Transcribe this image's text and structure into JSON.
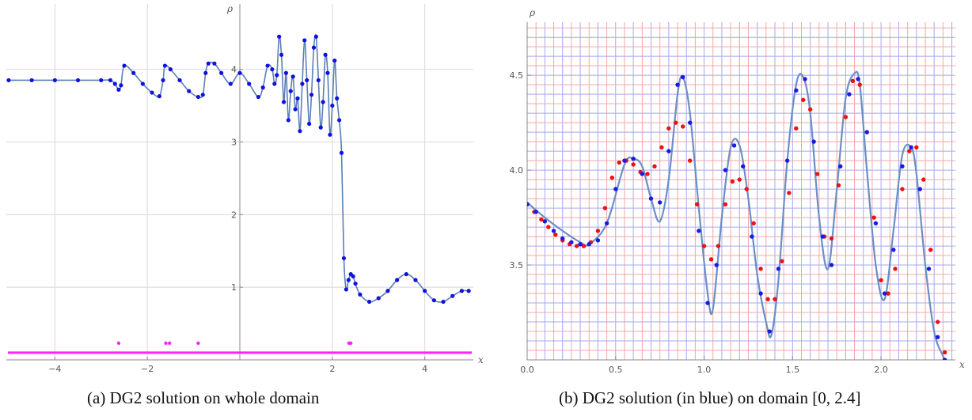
{
  "chart_data": [
    {
      "type": "scatter",
      "caption": "(a) DG2 solution on whole domain",
      "xlabel": "x",
      "ylabel": "ρ",
      "xlim": [
        -5.05,
        5.05
      ],
      "ylim": [
        0,
        4.9
      ],
      "xticks": [
        -4,
        -2,
        0,
        2,
        4
      ],
      "xtick_labels": [
        "−4",
        "−2",
        "",
        "2",
        "4"
      ],
      "yticks": [
        1,
        2,
        3,
        4
      ],
      "grid": true,
      "colors": {
        "points": "#1010e0",
        "line": "#5a7fb6",
        "indicator": "#ff22ff",
        "grid": "#d8d8d8"
      },
      "series": [
        {
          "kind": "blue-dots",
          "x": [
            -5.0,
            -4.5,
            -4.0,
            -3.5,
            -3.0,
            -2.8,
            -2.7,
            -2.62,
            -2.57,
            -2.5,
            -2.3,
            -2.1,
            -1.9,
            -1.74,
            -1.66,
            -1.62,
            -1.5,
            -1.3,
            -1.1,
            -0.9,
            -0.8,
            -0.74,
            -0.68,
            -0.55,
            -0.4,
            -0.2,
            0.0,
            0.2,
            0.4,
            0.5,
            0.6,
            0.7,
            0.75,
            0.8,
            0.85,
            0.9,
            0.95,
            1.0,
            1.05,
            1.1,
            1.15,
            1.2,
            1.25,
            1.3,
            1.35,
            1.4,
            1.45,
            1.5,
            1.55,
            1.6,
            1.65,
            1.7,
            1.75,
            1.8,
            1.85,
            1.9,
            1.95,
            2.0,
            2.05,
            2.1,
            2.15,
            2.2,
            2.25,
            2.3,
            2.35,
            2.4,
            2.45,
            2.5,
            2.6,
            2.8,
            3.0,
            3.2,
            3.4,
            3.6,
            3.8,
            4.0,
            4.2,
            4.4,
            4.6,
            4.8,
            4.95
          ],
          "y": [
            3.85,
            3.85,
            3.85,
            3.85,
            3.85,
            3.85,
            3.8,
            3.72,
            3.78,
            4.05,
            3.95,
            3.8,
            3.68,
            3.63,
            3.85,
            4.05,
            4.0,
            3.85,
            3.7,
            3.62,
            3.65,
            3.95,
            4.08,
            4.08,
            3.95,
            3.8,
            3.95,
            3.8,
            3.62,
            3.75,
            4.05,
            4.0,
            3.8,
            3.92,
            4.45,
            4.2,
            3.55,
            3.95,
            3.3,
            3.7,
            3.9,
            3.45,
            3.6,
            3.15,
            3.8,
            4.4,
            3.85,
            3.25,
            3.65,
            4.3,
            4.45,
            3.85,
            3.2,
            3.55,
            4.2,
            3.95,
            3.1,
            3.5,
            4.12,
            3.6,
            3.3,
            2.85,
            1.4,
            0.97,
            1.1,
            1.18,
            1.15,
            1.05,
            0.9,
            0.8,
            0.85,
            0.95,
            1.1,
            1.18,
            1.1,
            0.95,
            0.82,
            0.8,
            0.88,
            0.95,
            0.95
          ]
        },
        {
          "kind": "indicator",
          "x": [
            -2.62,
            -1.6,
            -1.52,
            -0.9,
            2.36,
            2.4
          ],
          "y": [
            0.23,
            0.23,
            0.23,
            0.23,
            0.23,
            0.23
          ],
          "baseline": 0.1
        }
      ]
    },
    {
      "type": "line",
      "caption": "(b) DG2 solution (in blue) on domain [0, 2.4]",
      "xlabel": "x",
      "ylabel": "ρ",
      "xlim": [
        0,
        2.42
      ],
      "ylim": [
        3.0,
        4.78
      ],
      "xticks": [
        0.0,
        0.5,
        1.0,
        1.5,
        2.0
      ],
      "xtick_labels": [
        "0.0",
        "0.5",
        "1.0",
        "1.5",
        "2.0"
      ],
      "yticks": [
        3.5,
        4.0,
        4.5
      ],
      "ytick_labels": [
        "3.5",
        "4.0",
        "4.5"
      ],
      "colors": {
        "line": "#6a8fc6",
        "blue_points": "#1a1ae6",
        "red_points": "#ee1111",
        "grid_blue": "#a8a8f0",
        "grid_red": "#f0a8a8"
      },
      "series": [
        {
          "name": "",
          "kind": "reference-line",
          "x": [
            0.0,
            0.1,
            0.2,
            0.3,
            0.35,
            0.45,
            0.55,
            0.6,
            0.65,
            0.7,
            0.75,
            0.8,
            0.85,
            0.88,
            0.92,
            0.97,
            1.02,
            1.05,
            1.1,
            1.15,
            1.2,
            1.25,
            1.3,
            1.35,
            1.38,
            1.42,
            1.47,
            1.52,
            1.56,
            1.6,
            1.65,
            1.7,
            1.75,
            1.8,
            1.85,
            1.88,
            1.92,
            1.97,
            2.02,
            2.07,
            2.12,
            2.17,
            2.2,
            2.25,
            2.3,
            2.35,
            2.37
          ],
          "y": [
            3.83,
            3.75,
            3.68,
            3.62,
            3.61,
            3.72,
            4.03,
            4.06,
            4.02,
            3.85,
            3.73,
            3.95,
            4.4,
            4.49,
            4.3,
            3.8,
            3.35,
            3.27,
            3.75,
            4.12,
            4.13,
            3.85,
            3.45,
            3.2,
            3.13,
            3.42,
            4.05,
            4.45,
            4.49,
            4.3,
            3.75,
            3.48,
            3.9,
            4.38,
            4.51,
            4.45,
            4.0,
            3.5,
            3.32,
            3.68,
            4.08,
            4.12,
            3.98,
            3.5,
            3.15,
            3.02,
            2.98
          ]
        },
        {
          "name": "",
          "kind": "blue-dots",
          "x": [
            0.0,
            0.05,
            0.1,
            0.15,
            0.2,
            0.25,
            0.3,
            0.35,
            0.4,
            0.45,
            0.5,
            0.55,
            0.6,
            0.65,
            0.7,
            0.75,
            0.8,
            0.85,
            0.88,
            0.92,
            0.97,
            1.02,
            1.07,
            1.12,
            1.17,
            1.22,
            1.27,
            1.32,
            1.37,
            1.42,
            1.47,
            1.52,
            1.57,
            1.62,
            1.67,
            1.72,
            1.77,
            1.82,
            1.87,
            1.92,
            1.97,
            2.02,
            2.07,
            2.12,
            2.17,
            2.22,
            2.27,
            2.32,
            2.36
          ],
          "y": [
            3.82,
            3.78,
            3.73,
            3.68,
            3.64,
            3.62,
            3.61,
            3.61,
            3.63,
            3.72,
            3.9,
            4.05,
            4.06,
            3.98,
            3.85,
            3.83,
            4.1,
            4.45,
            4.49,
            4.25,
            3.68,
            3.3,
            3.5,
            4.0,
            4.13,
            4.02,
            3.65,
            3.35,
            3.15,
            3.48,
            4.05,
            4.42,
            4.48,
            4.15,
            3.65,
            3.5,
            4.02,
            4.4,
            4.48,
            4.2,
            3.72,
            3.35,
            3.58,
            4.02,
            4.12,
            3.9,
            3.48,
            3.12,
            3.0
          ]
        },
        {
          "name": "",
          "kind": "red-dots",
          "x": [
            0.0,
            0.04,
            0.08,
            0.12,
            0.16,
            0.2,
            0.24,
            0.28,
            0.32,
            0.36,
            0.4,
            0.44,
            0.48,
            0.52,
            0.56,
            0.6,
            0.64,
            0.68,
            0.72,
            0.76,
            0.8,
            0.84,
            0.88,
            0.92,
            0.96,
            1.0,
            1.04,
            1.08,
            1.12,
            1.16,
            1.2,
            1.24,
            1.28,
            1.32,
            1.36,
            1.4,
            1.44,
            1.48,
            1.52,
            1.56,
            1.6,
            1.64,
            1.68,
            1.72,
            1.76,
            1.8,
            1.84,
            1.88,
            1.92,
            1.96,
            2.0,
            2.04,
            2.08,
            2.12,
            2.16,
            2.2,
            2.24,
            2.28,
            2.32,
            2.36
          ],
          "y": [
            3.82,
            3.78,
            3.74,
            3.7,
            3.66,
            3.63,
            3.61,
            3.6,
            3.6,
            3.62,
            3.68,
            3.8,
            3.96,
            4.04,
            4.05,
            4.03,
            3.99,
            3.98,
            4.02,
            4.12,
            4.22,
            4.25,
            4.23,
            4.05,
            3.82,
            3.6,
            3.53,
            3.6,
            3.82,
            3.94,
            3.95,
            3.9,
            3.72,
            3.48,
            3.32,
            3.32,
            3.52,
            3.88,
            4.22,
            4.37,
            4.32,
            3.98,
            3.65,
            3.64,
            3.92,
            4.28,
            4.47,
            4.45,
            4.2,
            3.75,
            3.42,
            3.35,
            3.48,
            3.9,
            4.1,
            4.12,
            3.95,
            3.58,
            3.2,
            3.04
          ]
        }
      ]
    }
  ]
}
